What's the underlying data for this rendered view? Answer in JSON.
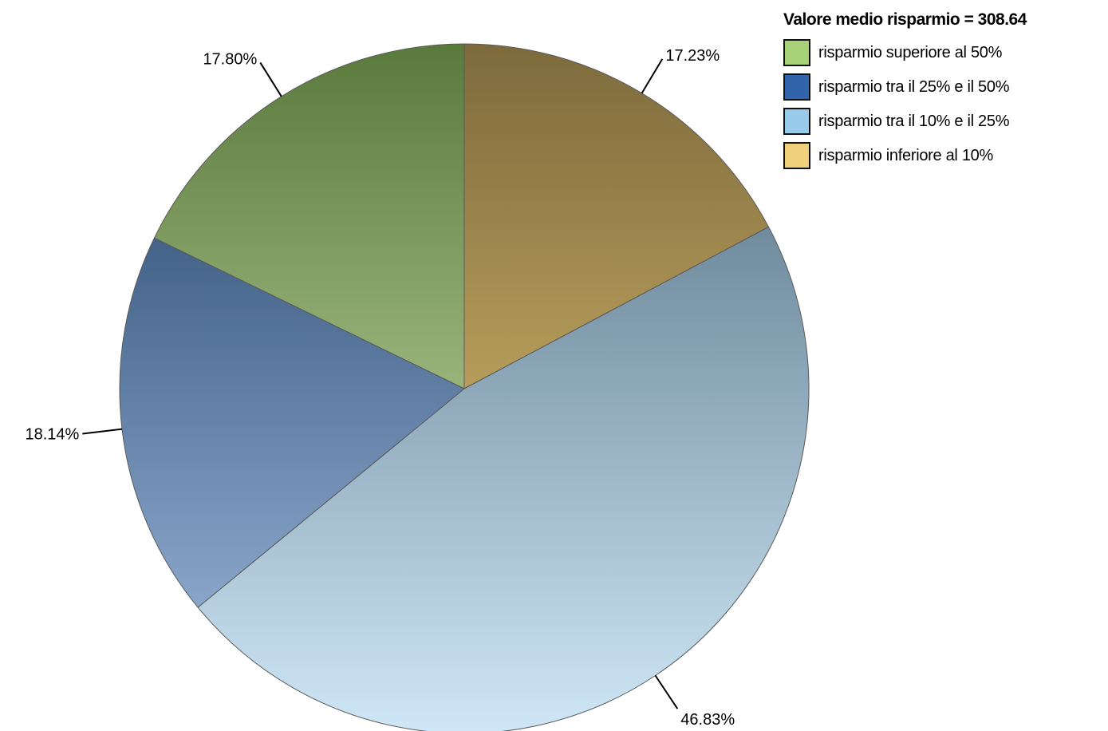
{
  "chart_data": {
    "type": "pie",
    "legend_title": "Valore medio risparmio = 308.64",
    "legend_position": "top-right",
    "slices": [
      {
        "label": "risparmio inferiore al 10%",
        "value": 17.23,
        "value_label": "17.23%",
        "color": "#f0d07a",
        "color_dark": "#7d6a3c"
      },
      {
        "label": "risparmio tra il 10% e il 25%",
        "value": 46.83,
        "value_label": "46.83%",
        "color": "#cfe7f6",
        "color_dark": "#4d6a7e"
      },
      {
        "label": "risparmio tra il 25% e il 50%",
        "value": 18.14,
        "value_label": "18.14%",
        "color": "#a0bde0",
        "color_dark": "#1f3f66"
      },
      {
        "label": "risparmio superiore al 50%",
        "value": 17.8,
        "value_label": "17.80%",
        "color": "#d8eebb",
        "color_dark": "#5a7a3c"
      }
    ],
    "legend_order": [
      {
        "label": "risparmio superiore al 50%",
        "color": "#a8d277"
      },
      {
        "label": "risparmio tra il 25% e il 50%",
        "color": "#3064ab"
      },
      {
        "label": "risparmio tra il 10% e il 25%",
        "color": "#99cbea"
      },
      {
        "label": "risparmio inferiore al 10%",
        "color": "#f0d07a"
      }
    ]
  }
}
